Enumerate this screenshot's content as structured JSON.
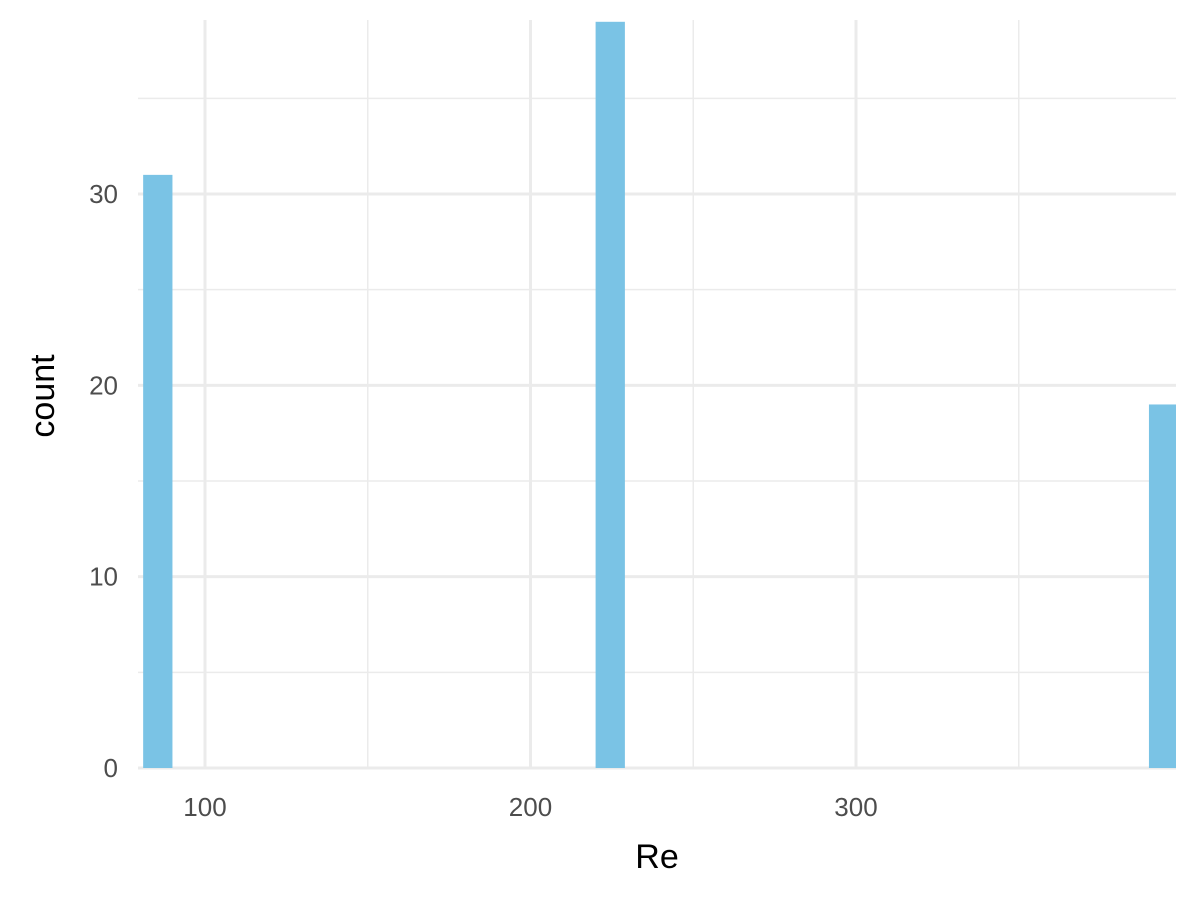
{
  "colors": {
    "background": "#ffffff",
    "grid": "#ebebeb",
    "bar_fill": "#7ac3e5",
    "tick_label": "#4d4d4d",
    "axis_title": "#000000"
  },
  "chart_data": {
    "type": "bar",
    "subtype": "histogram",
    "title": "",
    "xlabel": "Re",
    "ylabel": "count",
    "xlim": [
      80,
      390
    ],
    "ylim": [
      0,
      39
    ],
    "x_ticks": [
      100,
      200,
      300
    ],
    "x_tick_labels": [
      "100",
      "200",
      "300"
    ],
    "x_minor_ticks": [
      150,
      250,
      350
    ],
    "y_ticks": [
      0,
      10,
      20,
      30
    ],
    "y_tick_labels": [
      "0",
      "10",
      "20",
      "30"
    ],
    "y_minor_ticks": [
      5,
      15,
      25,
      35
    ],
    "grid": true,
    "legend": "none",
    "bars": [
      {
        "x_start": 81,
        "x_end": 90,
        "count": 31
      },
      {
        "x_start": 220,
        "x_end": 229,
        "count": 39
      },
      {
        "x_start": 390,
        "x_end": 399,
        "count": 19
      }
    ]
  }
}
